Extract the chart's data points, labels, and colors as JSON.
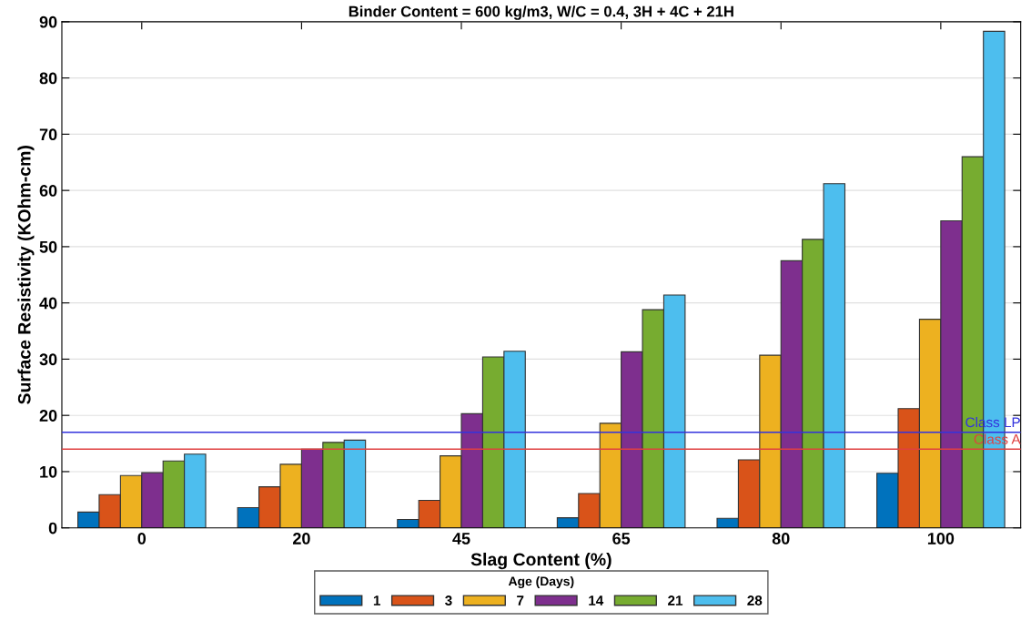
{
  "chart_data": {
    "type": "bar",
    "title": "Binder Content = 600 kg/m3, W/C = 0.4, 3H + 4C + 21H",
    "xlabel": "Slag Content (%)",
    "ylabel": "Surface Resistivity (KOhm-cm)",
    "legend_title": "Age (Days)",
    "categories": [
      "0",
      "20",
      "45",
      "65",
      "80",
      "100"
    ],
    "series": [
      {
        "name": "1",
        "color": "#0072bd",
        "values": [
          2.8,
          3.6,
          1.5,
          1.8,
          1.7,
          9.7
        ]
      },
      {
        "name": "3",
        "color": "#d95319",
        "values": [
          5.9,
          7.3,
          4.9,
          6.1,
          12.1,
          21.2
        ]
      },
      {
        "name": "7",
        "color": "#edb120",
        "values": [
          9.3,
          11.3,
          12.8,
          18.6,
          30.7,
          37.1
        ]
      },
      {
        "name": "14",
        "color": "#7e2f8e",
        "values": [
          9.8,
          14.0,
          20.3,
          31.3,
          47.5,
          54.6
        ]
      },
      {
        "name": "21",
        "color": "#77ac30",
        "values": [
          11.9,
          15.2,
          30.4,
          38.8,
          51.3,
          66.0
        ]
      },
      {
        "name": "28",
        "color": "#4dbeee",
        "values": [
          13.1,
          15.6,
          31.4,
          41.4,
          61.2,
          88.3
        ]
      }
    ],
    "ylim": [
      0,
      90
    ],
    "yticks": [
      0,
      10,
      20,
      30,
      40,
      50,
      60,
      70,
      80,
      90
    ],
    "ref_lines": [
      {
        "axis": "y",
        "value": 17,
        "label": "Class LP",
        "color": "#3333dd"
      },
      {
        "axis": "y",
        "value": 14,
        "label": "Class A",
        "color": "#e04040"
      }
    ],
    "grid": "y",
    "legend": "bottom"
  }
}
